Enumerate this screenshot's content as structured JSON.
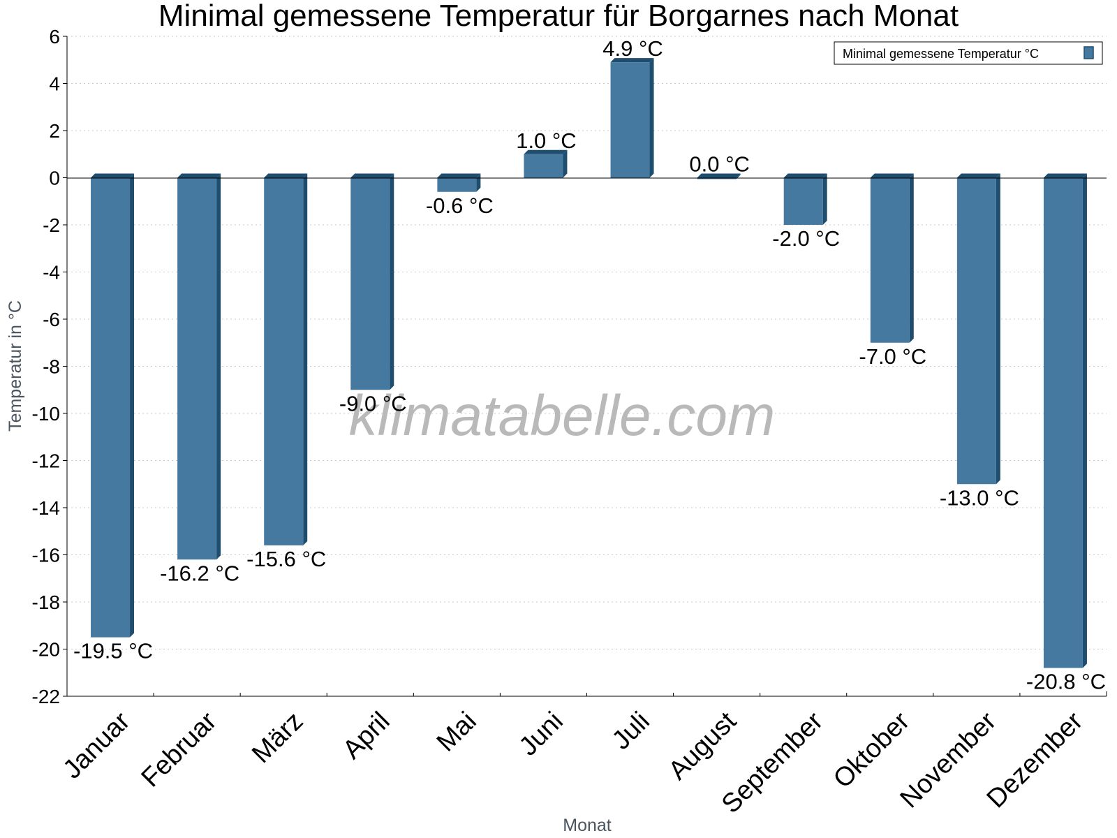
{
  "chart_data": {
    "type": "bar",
    "title": "Minimal gemessene Temperatur für Borgarnes nach Monat",
    "xlabel": "Monat",
    "ylabel": "Temperatur in °C",
    "categories": [
      "Januar",
      "Februar",
      "März",
      "April",
      "Mai",
      "Juni",
      "Juli",
      "August",
      "September",
      "Oktober",
      "November",
      "Dezember"
    ],
    "series": [
      {
        "name": "Minimal gemessene Temperatur °C",
        "values": [
          -19.5,
          -16.2,
          -15.6,
          -9.0,
          -0.6,
          1.0,
          4.9,
          0.0,
          -2.0,
          -7.0,
          -13.0,
          -20.8
        ],
        "labels": [
          "-19.5 °C",
          "-16.2 °C",
          "-15.6 °C",
          "-9.0 °C",
          "-0.6 °C",
          "1.0 °C",
          "4.9 °C",
          "0.0 °C",
          "-2.0 °C",
          "-7.0 °C",
          "-13.0 °C",
          "-20.8 °C"
        ],
        "color": "#4679a0",
        "side_color": "#1f4d6e"
      }
    ],
    "yticks": [
      6,
      4,
      2,
      0,
      -2,
      -4,
      -6,
      -8,
      -10,
      -12,
      -14,
      -16,
      -18,
      -20,
      -22
    ],
    "ylim": [
      -22,
      6
    ],
    "grid": true,
    "legend_position": "top-right",
    "watermark": "klimatabelle.com"
  }
}
